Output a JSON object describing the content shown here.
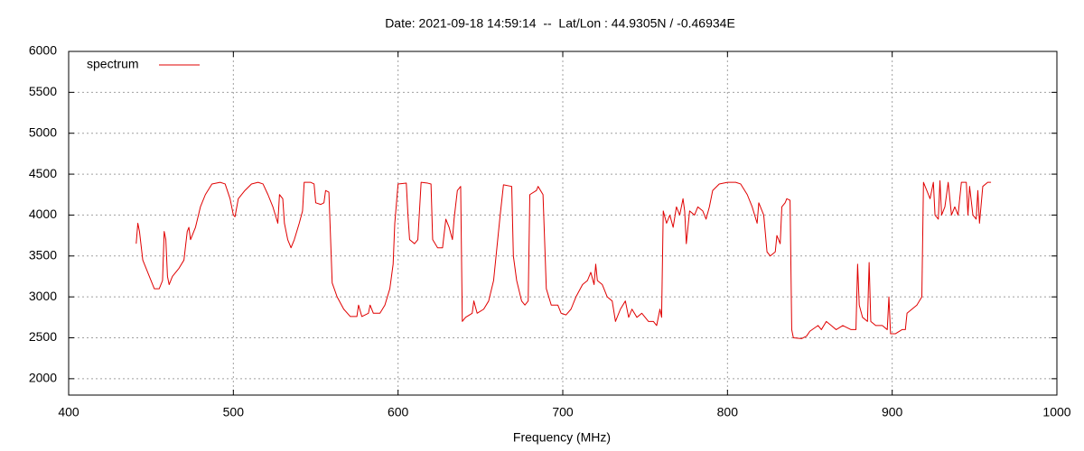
{
  "chart_data": {
    "type": "line",
    "title": "Date: 2021-09-18 14:59:14  --  Lat/Lon : 44.9305N / -0.46934E",
    "x_label": "Frequency (MHz)",
    "legend": "top-left",
    "grid": true,
    "xlim": [
      400,
      1000
    ],
    "xticks": [
      400,
      500,
      600,
      700,
      800,
      900,
      1000
    ],
    "ylim": [
      1800,
      6000
    ],
    "yticks": [
      2000,
      2500,
      3000,
      3500,
      4000,
      4500,
      5000,
      5500,
      6000
    ],
    "x": [
      441,
      442,
      443,
      445,
      448,
      452,
      455,
      457,
      458,
      459,
      460,
      461,
      463,
      467,
      470,
      472,
      473,
      474,
      477,
      480,
      483,
      487,
      492,
      495,
      498,
      500,
      501,
      503,
      507,
      511,
      515,
      518,
      521,
      524,
      527,
      528,
      530,
      531,
      533,
      535,
      537,
      540,
      542,
      543,
      547,
      549,
      550,
      553,
      555,
      556,
      558,
      560,
      563,
      567,
      571,
      575,
      576,
      578,
      582,
      583,
      585,
      589,
      592,
      595,
      597,
      598,
      600,
      605,
      606,
      607,
      610,
      612,
      614,
      618,
      620,
      621,
      624,
      627,
      629,
      631,
      633,
      634,
      636,
      638,
      639,
      641,
      645,
      646,
      648,
      652,
      655,
      658,
      660,
      662,
      664,
      669,
      670,
      672,
      675,
      677,
      679,
      680,
      684,
      685,
      688,
      690,
      693,
      697,
      699,
      702,
      705,
      708,
      712,
      715,
      717,
      719,
      720,
      721,
      724,
      727,
      730,
      732,
      735,
      738,
      740,
      742,
      745,
      748,
      752,
      755,
      757,
      759,
      760,
      761,
      763,
      765,
      767,
      769,
      771,
      773,
      774,
      775,
      777,
      780,
      782,
      785,
      787,
      789,
      791,
      795,
      800,
      805,
      808,
      812,
      815,
      818,
      819,
      822,
      824,
      826,
      829,
      830,
      832,
      833,
      835,
      836,
      838,
      839,
      840,
      845,
      848,
      850,
      855,
      857,
      860,
      863,
      866,
      870,
      875,
      878,
      879,
      880,
      882,
      885,
      886,
      887,
      890,
      894,
      897,
      898,
      899,
      902,
      906,
      908,
      909,
      912,
      915,
      918,
      919,
      921,
      923,
      925,
      926,
      928,
      929,
      930,
      932,
      934,
      936,
      938,
      940,
      942,
      945,
      946,
      947,
      949,
      951,
      952,
      953,
      955,
      958,
      960
    ],
    "series": [
      {
        "name": "spectrum",
        "color": "#e00000",
        "values": [
          3650,
          3900,
          3800,
          3450,
          3300,
          3100,
          3100,
          3200,
          3800,
          3700,
          3250,
          3150,
          3250,
          3350,
          3450,
          3800,
          3850,
          3700,
          3850,
          4100,
          4250,
          4380,
          4400,
          4380,
          4200,
          4000,
          3980,
          4200,
          4300,
          4380,
          4400,
          4380,
          4250,
          4100,
          3900,
          4250,
          4200,
          3900,
          3700,
          3600,
          3700,
          3900,
          4050,
          4400,
          4400,
          4380,
          4150,
          4130,
          4150,
          4300,
          4280,
          3170,
          3000,
          2850,
          2760,
          2760,
          2900,
          2760,
          2800,
          2900,
          2800,
          2800,
          2900,
          3100,
          3400,
          3900,
          4380,
          4390,
          4000,
          3700,
          3650,
          3700,
          4400,
          4390,
          4380,
          3700,
          3600,
          3600,
          3950,
          3850,
          3700,
          3950,
          4300,
          4350,
          2700,
          2750,
          2800,
          2950,
          2800,
          2850,
          2950,
          3200,
          3600,
          4000,
          4370,
          4350,
          3500,
          3200,
          2950,
          2900,
          2950,
          4250,
          4300,
          4350,
          4250,
          3100,
          2900,
          2900,
          2800,
          2780,
          2850,
          3000,
          3150,
          3200,
          3300,
          3150,
          3400,
          3200,
          3150,
          3000,
          2950,
          2700,
          2850,
          2950,
          2750,
          2850,
          2750,
          2800,
          2700,
          2700,
          2650,
          2850,
          2750,
          4050,
          3900,
          4000,
          3850,
          4100,
          4000,
          4200,
          4050,
          3650,
          4050,
          4000,
          4100,
          4050,
          3950,
          4100,
          4300,
          4380,
          4400,
          4400,
          4380,
          4250,
          4100,
          3900,
          4150,
          4000,
          3550,
          3500,
          3550,
          3750,
          3650,
          4100,
          4150,
          4200,
          4180,
          2600,
          2500,
          2490,
          2520,
          2580,
          2650,
          2600,
          2700,
          2650,
          2600,
          2650,
          2600,
          2600,
          3400,
          2900,
          2750,
          2700,
          3420,
          2700,
          2650,
          2650,
          2600,
          3000,
          2550,
          2550,
          2600,
          2600,
          2800,
          2850,
          2900,
          3000,
          4400,
          4300,
          4200,
          4400,
          4000,
          3950,
          4420,
          4000,
          4100,
          4400,
          4000,
          4100,
          4000,
          4400,
          4400,
          4000,
          4350,
          4000,
          3950,
          4300,
          3900,
          4350,
          4400,
          4400
        ]
      }
    ]
  }
}
